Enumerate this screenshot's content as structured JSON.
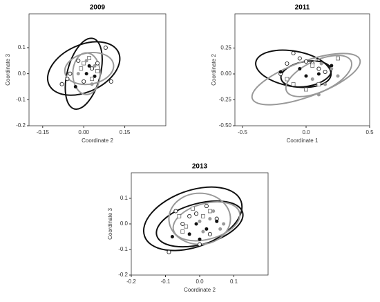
{
  "chart_data": [
    {
      "type": "scatter",
      "title": "2009",
      "xlabel": "Coordinate 2",
      "ylabel": "Coordinate 3",
      "xlim": [
        -0.2,
        0.3
      ],
      "ylim": [
        -0.2,
        0.23
      ],
      "xticks": [
        -0.15,
        {
          "value": 0,
          "label": "0.00"
        },
        0.15
      ],
      "yticks": [
        0.1,
        {
          "value": 0,
          "label": "0.0"
        },
        -0.1,
        -0.2
      ],
      "series": [
        {
          "marker": "open-circle",
          "color": "#222222",
          "x": [
            0.08,
            -0.08,
            -0.05,
            0.1,
            -0.02,
            0.03,
            0.0,
            0.05,
            -0.06
          ],
          "values": [
            0.1,
            -0.04,
            0.0,
            -0.03,
            0.05,
            0.02,
            -0.03,
            0.04,
            -0.02
          ]
        },
        {
          "marker": "circle",
          "color": "#111111",
          "x": [
            -0.03,
            0.02,
            0.04,
            0.01
          ],
          "values": [
            -0.05,
            0.03,
            -0.01,
            0.0
          ]
        },
        {
          "marker": "open-square",
          "color": "#666666",
          "x": [
            0.0,
            0.03,
            -0.01,
            0.05,
            0.02
          ],
          "values": [
            0.04,
            -0.02,
            0.02,
            0.01,
            0.06
          ]
        },
        {
          "marker": "circle",
          "color": "#9a9a9a",
          "x": [
            0.01,
            -0.02,
            0.04,
            0.03
          ],
          "values": [
            0.05,
            0.0,
            0.03,
            -0.04
          ]
        }
      ],
      "ellipses": [
        {
          "cx": 0.0,
          "cy": 0.02,
          "rx": 0.14,
          "ry": 0.09,
          "angle": -25,
          "color": "#111111"
        },
        {
          "cx": 0.0,
          "cy": 0.0,
          "rx": 0.06,
          "ry": 0.14,
          "angle": 15,
          "color": "#111111"
        },
        {
          "cx": 0.02,
          "cy": 0.02,
          "rx": 0.09,
          "ry": 0.06,
          "angle": -10,
          "color": "#999999"
        },
        {
          "cx": 0.01,
          "cy": 0.0,
          "rx": 0.05,
          "ry": 0.08,
          "angle": 0,
          "color": "#999999"
        }
      ]
    },
    {
      "type": "scatter",
      "title": "2011",
      "xlabel": "Coordinate 1",
      "ylabel": "Coordinate 2",
      "xlim": [
        -0.56,
        0.5
      ],
      "ylim": [
        -0.5,
        0.58
      ],
      "xticks": [
        -0.5,
        {
          "value": 0,
          "label": "0.0"
        },
        0.5
      ],
      "yticks": [
        0.25,
        {
          "value": 0,
          "label": "0.00"
        },
        -0.25,
        {
          "value": -0.5,
          "label": "-0.50"
        }
      ],
      "series": [
        {
          "marker": "open-circle",
          "color": "#222222",
          "x": [
            -0.1,
            -0.15,
            -0.05,
            0.05,
            0.1,
            -0.2,
            0.0,
            0.15
          ],
          "values": [
            0.2,
            0.1,
            0.15,
            0.1,
            0.05,
            0.0,
            0.12,
            0.02
          ]
        },
        {
          "marker": "circle",
          "color": "#111111",
          "x": [
            -0.2,
            0.0,
            -0.05,
            0.1,
            0.2
          ],
          "values": [
            0.02,
            -0.02,
            0.05,
            0.0,
            0.08
          ]
        },
        {
          "marker": "open-square",
          "color": "#666666",
          "x": [
            -0.1,
            -0.15,
            0.0,
            0.05,
            0.25,
            0.1
          ],
          "values": [
            -0.1,
            -0.05,
            -0.15,
            0.08,
            0.15,
            -0.1
          ]
        },
        {
          "marker": "circle",
          "color": "#9a9a9a",
          "x": [
            0.1,
            0.15,
            0.2,
            0.05,
            0.25,
            0.12
          ],
          "values": [
            -0.2,
            -0.1,
            0.05,
            -0.05,
            -0.02,
            0.1
          ]
        }
      ],
      "ellipses": [
        {
          "cx": -0.1,
          "cy": 0.05,
          "rx": 0.3,
          "ry": 0.17,
          "angle": 10,
          "color": "#111111"
        },
        {
          "cx": 0.0,
          "cy": 0.0,
          "rx": 0.2,
          "ry": 0.12,
          "angle": -10,
          "color": "#111111"
        },
        {
          "cx": 0.0,
          "cy": -0.05,
          "rx": 0.45,
          "ry": 0.17,
          "angle": -20,
          "color": "#999999"
        },
        {
          "cx": 0.1,
          "cy": -0.02,
          "rx": 0.28,
          "ry": 0.15,
          "angle": -25,
          "color": "#999999"
        }
      ]
    },
    {
      "type": "scatter",
      "title": "2013",
      "xlabel": "Coordinate 2",
      "ylabel": "Coordinate 3",
      "xlim": [
        -0.2,
        0.2
      ],
      "ylim": [
        -0.2,
        0.2
      ],
      "xticks": [
        -0.2,
        -0.1,
        {
          "value": 0,
          "label": "0.0"
        },
        0.1
      ],
      "yticks": [
        0.1,
        {
          "value": 0,
          "label": "0.0"
        },
        -0.1,
        -0.2
      ],
      "series": [
        {
          "marker": "open-circle",
          "color": "#222222",
          "x": [
            -0.09,
            -0.07,
            -0.03,
            0.0,
            0.02,
            0.05,
            -0.05,
            0.03,
            -0.01
          ],
          "values": [
            -0.11,
            0.05,
            0.03,
            -0.08,
            0.07,
            0.02,
            0.0,
            -0.04,
            0.04
          ]
        },
        {
          "marker": "circle",
          "color": "#111111",
          "x": [
            -0.08,
            -0.03,
            0.0,
            0.02,
            0.05,
            -0.01
          ],
          "values": [
            -0.05,
            -0.04,
            -0.06,
            -0.02,
            0.01,
            0.0
          ]
        },
        {
          "marker": "open-square",
          "color": "#666666",
          "x": [
            -0.06,
            -0.04,
            -0.02,
            0.01,
            0.03,
            -0.05
          ],
          "values": [
            0.03,
            -0.01,
            0.06,
            0.03,
            0.05,
            -0.03
          ]
        },
        {
          "marker": "circle",
          "color": "#9a9a9a",
          "x": [
            0.0,
            0.03,
            0.06,
            0.04,
            0.01,
            0.07
          ],
          "values": [
            0.01,
            0.02,
            -0.02,
            0.05,
            -0.03,
            0.0
          ]
        }
      ],
      "ellipses": [
        {
          "cx": -0.02,
          "cy": 0.02,
          "rx": 0.15,
          "ry": 0.11,
          "angle": -20,
          "color": "#111111"
        },
        {
          "cx": 0.0,
          "cy": 0.0,
          "rx": 0.13,
          "ry": 0.08,
          "angle": -15,
          "color": "#111111"
        },
        {
          "cx": 0.02,
          "cy": 0.01,
          "rx": 0.1,
          "ry": 0.07,
          "angle": -15,
          "color": "#999999"
        },
        {
          "cx": 0.0,
          "cy": 0.02,
          "rx": 0.09,
          "ry": 0.1,
          "angle": 0,
          "color": "#999999"
        }
      ]
    }
  ]
}
